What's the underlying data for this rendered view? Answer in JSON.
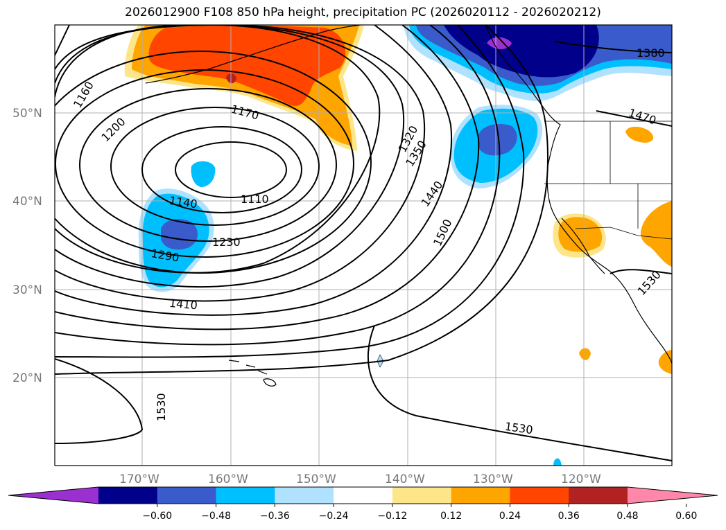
{
  "title": "2026012900 F108 850 hPa height, precipitation PC (2026020112 - 2026020212)",
  "lat_labels": [
    "50°N",
    "40°N",
    "30°N",
    "20°N"
  ],
  "lon_labels": [
    "170°W",
    "160°W",
    "150°W",
    "140°W",
    "130°W",
    "120°W"
  ],
  "contour_labels": [
    "1160",
    "1200",
    "1170",
    "1110",
    "1140",
    "1230",
    "1290",
    "1410",
    "1320",
    "1350",
    "1440",
    "1500",
    "1380",
    "1470",
    "1530",
    "1530",
    "1530"
  ],
  "colorbar": {
    "colors": [
      "#9b30d0",
      "#00008b",
      "#3a5bcc",
      "#00bfff",
      "#b0e2ff",
      "#ffffff",
      "#fde68a",
      "#ffa500",
      "#ff4500",
      "#b22222",
      "#ff88aa"
    ],
    "ticks": [
      "−0.60",
      "−0.48",
      "−0.36",
      "−0.24",
      "−0.12",
      "0.12",
      "0.24",
      "0.36",
      "0.48",
      "0.60"
    ]
  }
}
